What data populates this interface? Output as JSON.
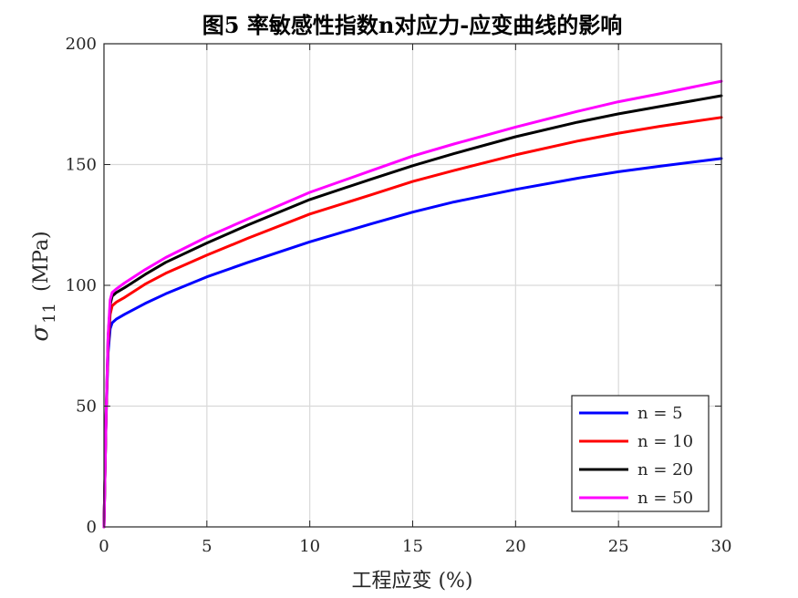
{
  "chart_data": {
    "type": "line",
    "title": "图5   率敏感性指数n对应力-应变曲线的影响",
    "xlabel": "工程应变 (%)",
    "ylabel_symbol": "σ",
    "ylabel_subscript": "11",
    "ylabel_unit": "(MPa)",
    "xlim": [
      0,
      30
    ],
    "ylim": [
      0,
      200
    ],
    "xticks": [
      0,
      5,
      10,
      15,
      20,
      25,
      30
    ],
    "yticks": [
      0,
      50,
      100,
      150,
      200
    ],
    "grid": true,
    "legend_position": "bottom-right",
    "series": [
      {
        "name": "n = 5",
        "color": "#0000FF",
        "x": [
          0,
          0.1,
          0.2,
          0.3,
          0.4,
          0.6,
          1,
          2,
          3,
          5,
          7,
          10,
          13,
          15,
          17,
          20,
          23,
          25,
          27,
          30
        ],
        "y": [
          0,
          45,
          72,
          82,
          84.5,
          86,
          88,
          92.5,
          96.5,
          103.5,
          109.5,
          118,
          125.5,
          130.3,
          134.5,
          139.7,
          144.3,
          147,
          149.3,
          152.5
        ]
      },
      {
        "name": "n = 10",
        "color": "#FF0000",
        "x": [
          0,
          0.1,
          0.2,
          0.3,
          0.4,
          0.6,
          1,
          2,
          3,
          5,
          7,
          10,
          13,
          15,
          17,
          20,
          23,
          25,
          27,
          30
        ],
        "y": [
          0,
          45,
          75,
          88,
          91.5,
          93,
          95,
          100.5,
          105,
          112.5,
          119.5,
          129.5,
          137.5,
          143,
          147.5,
          154,
          159.7,
          163,
          165.8,
          169.5
        ]
      },
      {
        "name": "n = 20",
        "color": "#000000",
        "x": [
          0,
          0.1,
          0.2,
          0.3,
          0.4,
          0.6,
          1,
          2,
          3,
          5,
          7,
          10,
          13,
          15,
          17,
          20,
          23,
          25,
          27,
          30
        ],
        "y": [
          0,
          46,
          78,
          92,
          95.5,
          97,
          99,
          104.5,
          109.5,
          117.5,
          125,
          135.5,
          144,
          149.5,
          154.5,
          161.5,
          167.5,
          171,
          174,
          178.5
        ]
      },
      {
        "name": "n = 50",
        "color": "#FF00FF",
        "x": [
          0,
          0.1,
          0.2,
          0.3,
          0.4,
          0.6,
          1,
          2,
          3,
          5,
          7,
          10,
          13,
          15,
          17,
          20,
          23,
          25,
          27,
          30
        ],
        "y": [
          0,
          46,
          79,
          94,
          97,
          98.5,
          101,
          106.5,
          111.5,
          120,
          127.5,
          138.5,
          147.5,
          153.5,
          158.5,
          165.5,
          172,
          176,
          179.3,
          184.5
        ]
      }
    ]
  }
}
